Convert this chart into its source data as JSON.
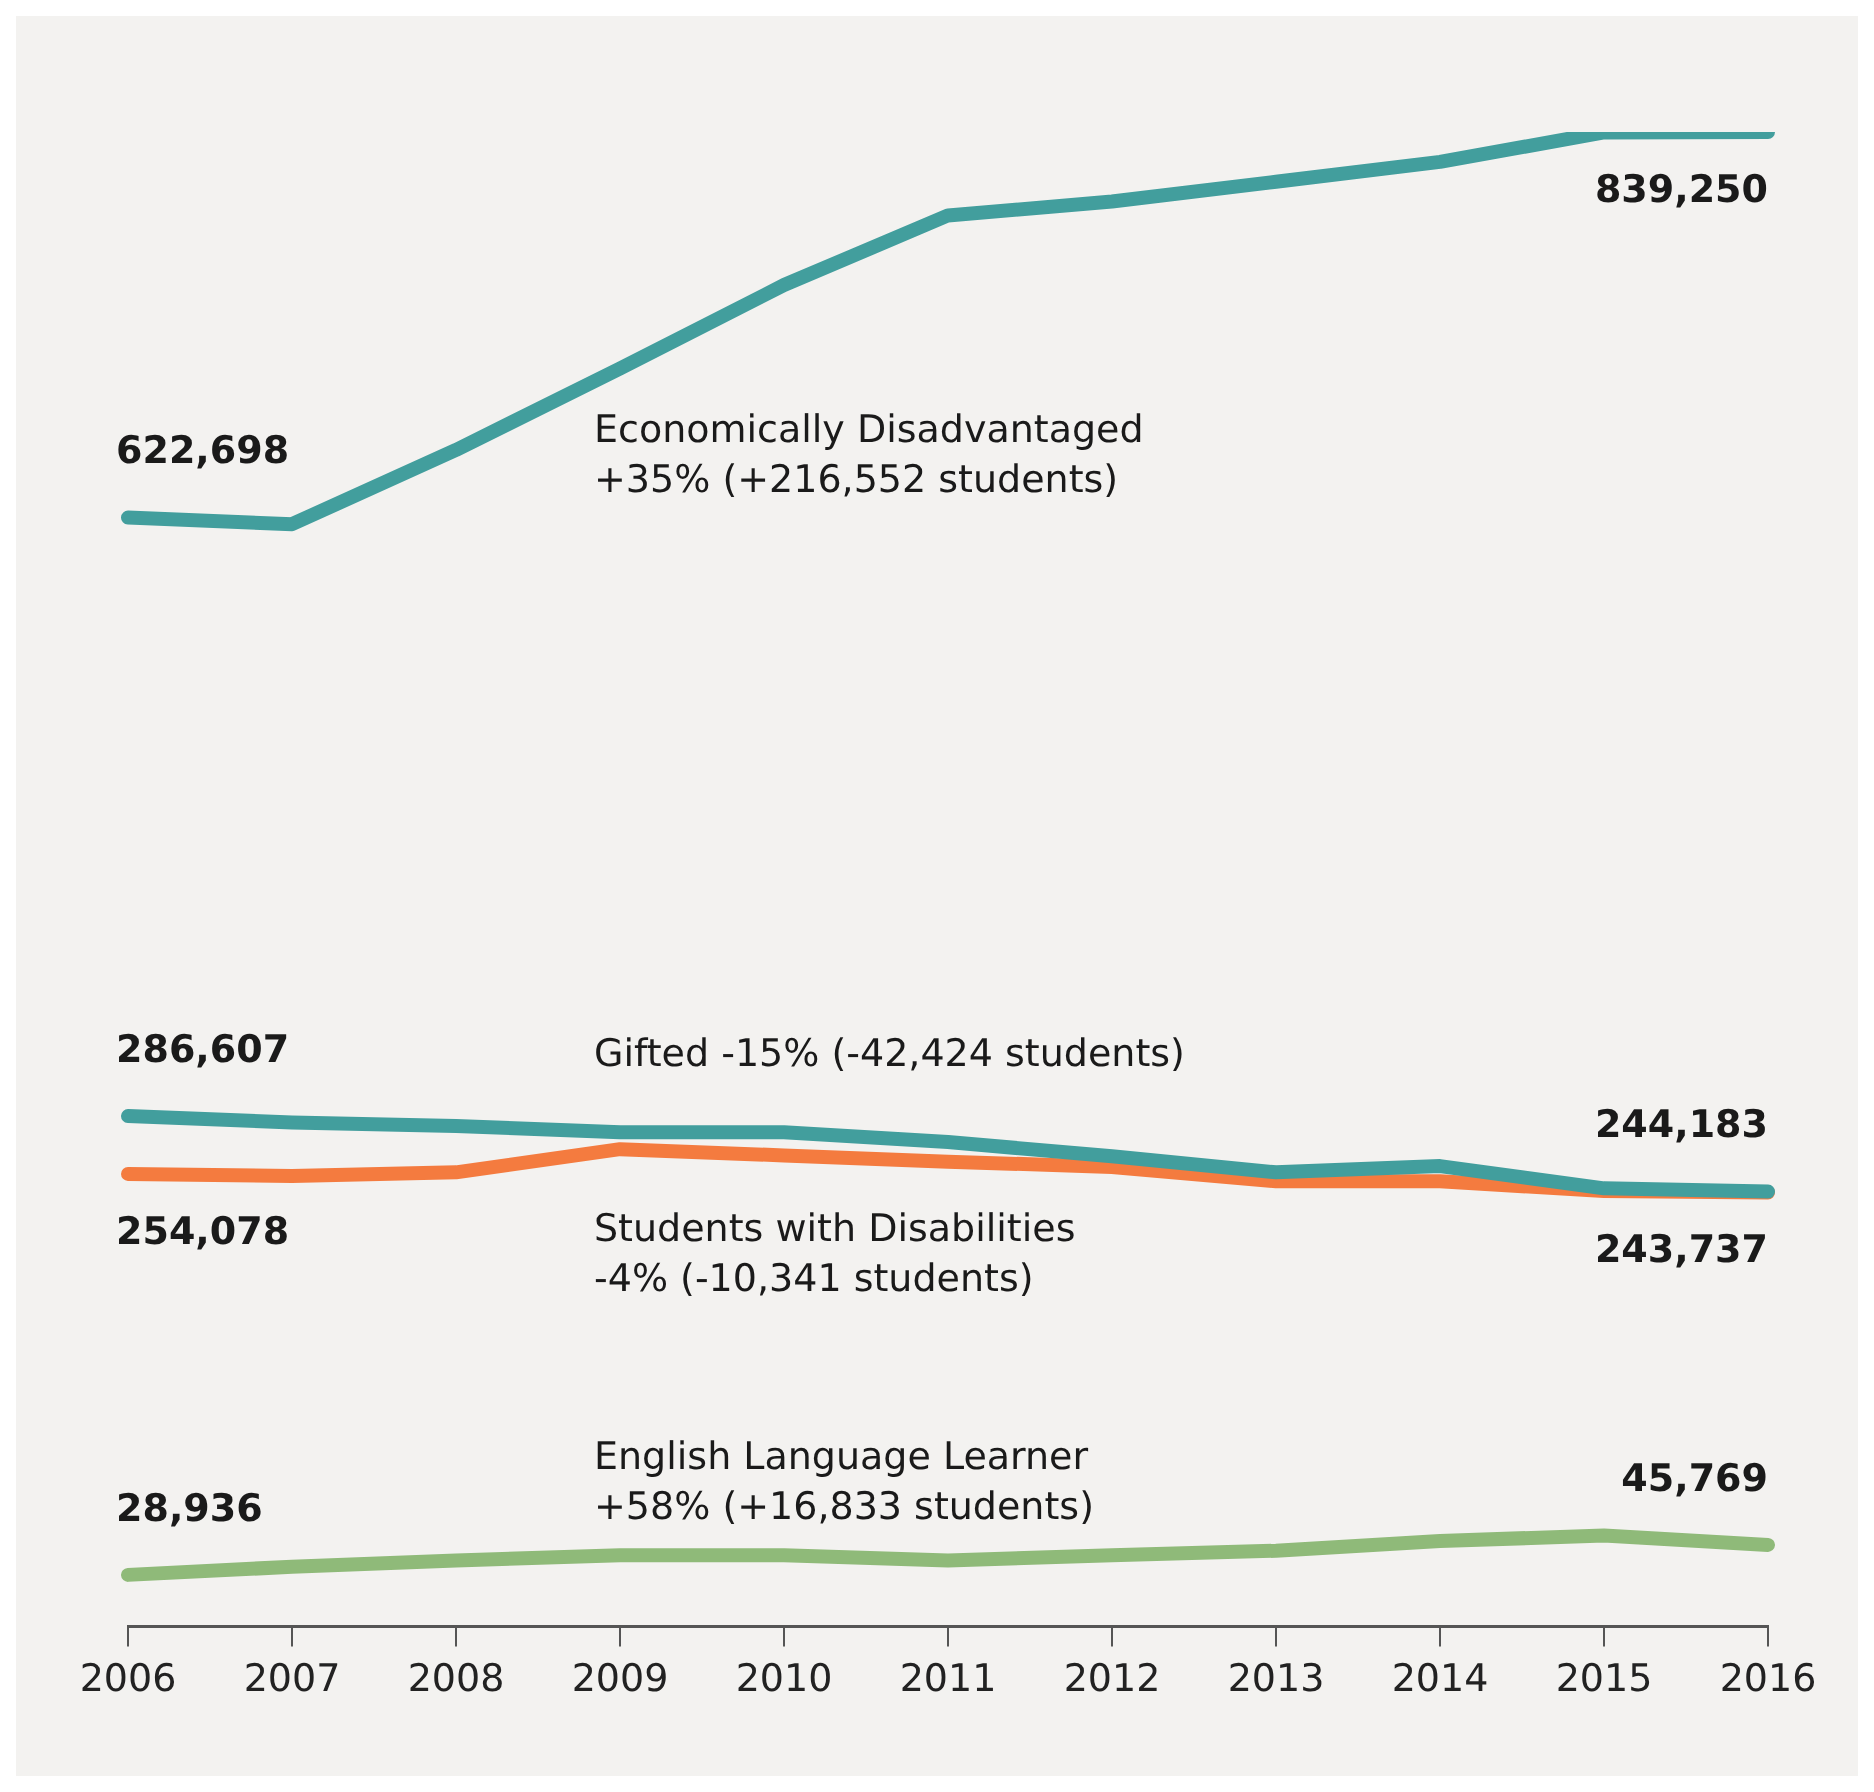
{
  "chart_data": {
    "type": "line",
    "categories": [
      "2006",
      "2007",
      "2008",
      "2009",
      "2010",
      "2011",
      "2012",
      "2013",
      "2014",
      "2015",
      "2016"
    ],
    "tick_labels": "x",
    "series": [
      {
        "name": "Economically Disadvantaged",
        "color": "#429e9d",
        "values": [
          622698,
          619000,
          660700,
          706400,
          753300,
          792400,
          800200,
          811300,
          822500,
          839000,
          839250
        ],
        "value_labels": [
          "622,698",
          null,
          null,
          null,
          null,
          null,
          null,
          null,
          null,
          null,
          "839,250"
        ]
      },
      {
        "name": "Gifted",
        "color": "#429e9d",
        "values": [
          286607,
          283000,
          281000,
          277500,
          277500,
          272000,
          264000,
          255000,
          258500,
          246000,
          244183
        ],
        "value_labels": [
          "286,607",
          null,
          null,
          null,
          null,
          null,
          null,
          null,
          null,
          null,
          "244,183"
        ]
      },
      {
        "name": "Students with Disabilities",
        "color": "#f47b3f",
        "values": [
          254078,
          253000,
          255000,
          268000,
          264500,
          261000,
          258000,
          250000,
          250000,
          244500,
          243737
        ],
        "value_labels": [
          "254,078",
          null,
          null,
          null,
          null,
          null,
          null,
          null,
          null,
          null,
          "243,737"
        ]
      },
      {
        "name": "English Language Learner",
        "color": "#8fba79",
        "values": [
          28936,
          33500,
          37000,
          40000,
          40000,
          37000,
          40000,
          42500,
          48000,
          51000,
          45769
        ],
        "value_labels": [
          "28,936",
          null,
          null,
          null,
          null,
          null,
          null,
          null,
          null,
          null,
          "45,769"
        ]
      }
    ],
    "annotations": [
      "+35% (+216,552 students)",
      "-15% (-42,424 students)",
      "-4% (-10,341 students)",
      "+58% (+16,833 students)"
    ]
  }
}
